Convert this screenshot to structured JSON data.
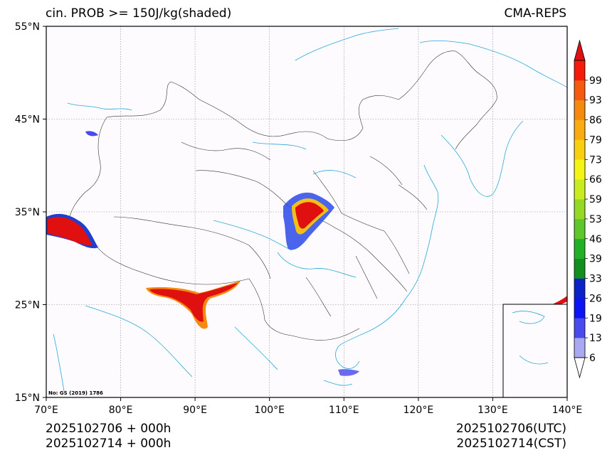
{
  "title_left": "cin. PROB >= 150J/kg(shaded)",
  "title_right": "CMA-REPS",
  "footer_left": [
    "2025102706  +  000h",
    "2025102714  +  000h"
  ],
  "footer_right": [
    "2025102706(UTC)",
    "2025102714(CST)"
  ],
  "map_note": "No: GS (2019) 1786",
  "lon_ticks": [
    "70°E",
    "80°E",
    "90°E",
    "100°E",
    "110°E",
    "120°E",
    "130°E",
    "140°E"
  ],
  "lat_ticks": [
    "55°N",
    "45°N",
    "35°N",
    "25°N",
    "15°N"
  ],
  "colorbar": {
    "levels": [
      "6",
      "13",
      "19",
      "26",
      "33",
      "39",
      "46",
      "53",
      "59",
      "66",
      "73",
      "79",
      "86",
      "93",
      "99"
    ],
    "colors": [
      "#a9a9f2",
      "#4a4aef",
      "#0a14f5",
      "#0a22c8",
      "#138f1f",
      "#23b027",
      "#5fc62b",
      "#93d925",
      "#c8ec1f",
      "#f5f515",
      "#f8d010",
      "#f8ac10",
      "#f58a0e",
      "#f55a0e",
      "#f51a0a",
      "#e01010"
    ]
  },
  "colors": {
    "coastline": "#29a9d8",
    "border": "#333333",
    "grid": "#888888",
    "background": "#fdfbfd"
  }
}
